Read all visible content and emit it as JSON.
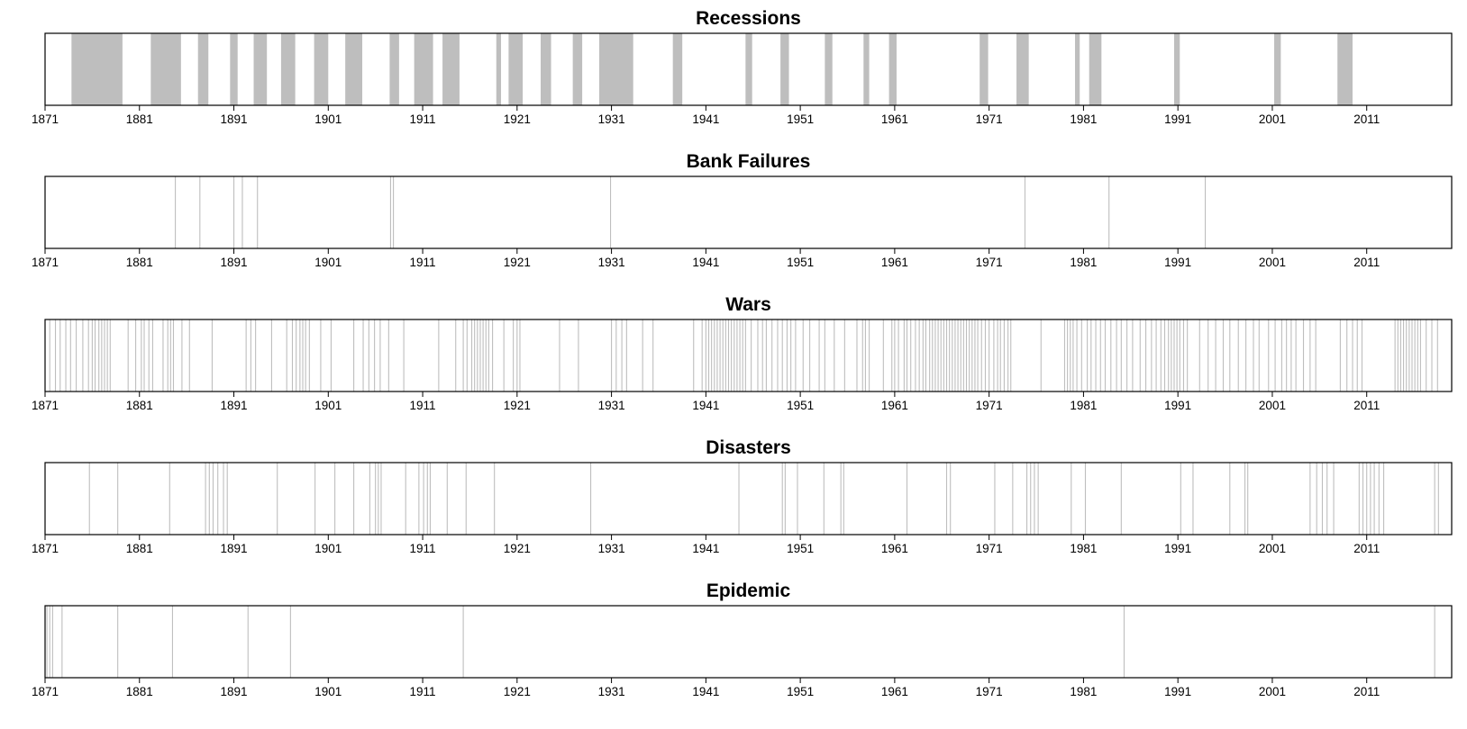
{
  "chart_data": [
    {
      "type": "timeline",
      "title": "Recessions",
      "xlim": [
        1871,
        2020
      ],
      "xticks": [
        "1871",
        "1881",
        "1891",
        "1901",
        "1911",
        "1921",
        "1931",
        "1941",
        "1951",
        "1961",
        "1971",
        "1981",
        "1991",
        "2001",
        "2011"
      ],
      "mark_color": "#bebebe",
      "periods": [
        [
          1873.8,
          1879.2
        ],
        [
          1882.2,
          1885.4
        ],
        [
          1887.2,
          1888.3
        ],
        [
          1890.6,
          1891.4
        ],
        [
          1893.1,
          1894.5
        ],
        [
          1896.0,
          1897.5
        ],
        [
          1899.5,
          1901.0
        ],
        [
          1902.8,
          1904.6
        ],
        [
          1907.5,
          1908.5
        ],
        [
          1910.1,
          1912.1
        ],
        [
          1913.1,
          1914.9
        ],
        [
          1918.8,
          1919.3
        ],
        [
          1920.1,
          1921.6
        ],
        [
          1923.5,
          1924.6
        ],
        [
          1926.9,
          1927.9
        ],
        [
          1929.7,
          1933.3
        ],
        [
          1937.5,
          1938.5
        ],
        [
          1945.2,
          1945.9
        ],
        [
          1948.9,
          1949.8
        ],
        [
          1953.6,
          1954.4
        ],
        [
          1957.7,
          1958.3
        ],
        [
          1960.4,
          1961.2
        ],
        [
          1970.0,
          1970.9
        ],
        [
          1973.9,
          1975.2
        ],
        [
          1980.1,
          1980.6
        ],
        [
          1981.6,
          1982.9
        ],
        [
          1990.6,
          1991.2
        ],
        [
          2001.2,
          2001.9
        ],
        [
          2007.9,
          2009.5
        ]
      ]
    },
    {
      "type": "timeline",
      "title": "Bank Failures",
      "xlim": [
        1871,
        2020
      ],
      "xticks": [
        "1871",
        "1881",
        "1891",
        "1901",
        "1911",
        "1921",
        "1931",
        "1941",
        "1951",
        "1961",
        "1971",
        "1981",
        "1991",
        "2001",
        "2011"
      ],
      "mark_color": "#bebebe",
      "events": [
        1884.8,
        1887.4,
        1891.0,
        1891.9,
        1893.5,
        1907.6,
        1907.9,
        1930.9,
        1974.8,
        1983.7,
        1993.9
      ]
    },
    {
      "type": "timeline",
      "title": "Wars",
      "xlim": [
        1871,
        2020
      ],
      "xticks": [
        "1871",
        "1881",
        "1891",
        "1901",
        "1911",
        "1921",
        "1931",
        "1941",
        "1951",
        "1961",
        "1971",
        "1981",
        "1991",
        "2001",
        "2011"
      ],
      "mark_color": "#bebebe",
      "events": [
        1871.5,
        1872.1,
        1872.6,
        1873.2,
        1873.7,
        1874.3,
        1875.0,
        1875.6,
        1876.0,
        1876.3,
        1876.7,
        1877.0,
        1877.3,
        1877.6,
        1877.9,
        1879.8,
        1880.6,
        1881.2,
        1881.5,
        1882.0,
        1882.4,
        1883.5,
        1884.0,
        1884.3,
        1884.6,
        1885.5,
        1886.3,
        1888.7,
        1892.3,
        1892.8,
        1893.3,
        1895.0,
        1896.6,
        1897.2,
        1897.6,
        1898.0,
        1898.3,
        1898.6,
        1899.0,
        1900.2,
        1901.3,
        1903.7,
        1904.7,
        1905.3,
        1905.9,
        1906.5,
        1907.4,
        1909.0,
        1912.7,
        1914.5,
        1915.3,
        1915.7,
        1916.2,
        1916.5,
        1916.8,
        1917.1,
        1917.4,
        1917.7,
        1918.0,
        1918.4,
        1919.6,
        1920.6,
        1921.0,
        1921.3,
        1925.5,
        1927.5,
        1931.0,
        1931.5,
        1932.1,
        1932.6,
        1934.3,
        1935.4,
        1939.7,
        1940.6,
        1941.0,
        1941.3,
        1941.6,
        1941.9,
        1942.2,
        1942.5,
        1942.8,
        1943.1,
        1943.4,
        1943.7,
        1944.0,
        1944.3,
        1944.6,
        1944.9,
        1945.2,
        1945.8,
        1946.5,
        1947.0,
        1947.4,
        1948.0,
        1948.6,
        1949.1,
        1949.6,
        1950.0,
        1950.5,
        1951.3,
        1952.0,
        1953.0,
        1953.6,
        1954.6,
        1955.7,
        1957.0,
        1957.6,
        1957.9,
        1958.3,
        1959.8,
        1960.7,
        1961.0,
        1961.4,
        1962.0,
        1962.3,
        1962.7,
        1963.2,
        1963.6,
        1964.0,
        1964.3,
        1964.7,
        1965.0,
        1965.3,
        1965.6,
        1965.9,
        1966.2,
        1966.5,
        1966.8,
        1967.1,
        1967.4,
        1967.7,
        1968.0,
        1968.3,
        1968.6,
        1968.9,
        1969.2,
        1969.5,
        1969.8,
        1970.2,
        1970.6,
        1971.0,
        1971.5,
        1971.9,
        1972.2,
        1972.6,
        1973.0,
        1973.3,
        1976.5,
        1979.0,
        1979.3,
        1979.6,
        1979.9,
        1980.3,
        1980.8,
        1981.4,
        1981.8,
        1982.3,
        1982.8,
        1983.3,
        1983.9,
        1984.5,
        1985.0,
        1985.6,
        1986.2,
        1987.0,
        1987.6,
        1988.2,
        1988.7,
        1989.2,
        1989.6,
        1990.0,
        1990.3,
        1990.6,
        1990.9,
        1991.2,
        1991.6,
        1992.0,
        1993.3,
        1994.2,
        1995.0,
        1995.8,
        1996.5,
        1997.4,
        1998.2,
        1999.0,
        1999.6,
        2000.6,
        2001.3,
        2002.0,
        2002.5,
        2003.0,
        2003.5,
        2004.3,
        2005.0,
        2005.6,
        2008.2,
        2008.9,
        2009.5,
        2010.0,
        2010.5,
        2014.0,
        2014.3,
        2014.6,
        2014.9,
        2015.2,
        2015.5,
        2015.8,
        2016.1,
        2016.4,
        2016.7,
        2017.3,
        2017.9,
        2018.5
      ]
    },
    {
      "type": "timeline",
      "title": "Disasters",
      "xlim": [
        1871,
        2020
      ],
      "xticks": [
        "1871",
        "1881",
        "1891",
        "1901",
        "1911",
        "1921",
        "1931",
        "1941",
        "1951",
        "1961",
        "1971",
        "1981",
        "1991",
        "2001",
        "2011"
      ],
      "mark_color": "#bebebe",
      "events": [
        1875.7,
        1878.7,
        1884.2,
        1888.0,
        1888.4,
        1888.8,
        1889.3,
        1889.9,
        1890.3,
        1895.6,
        1899.6,
        1901.7,
        1903.7,
        1905.4,
        1906.0,
        1906.3,
        1906.6,
        1909.2,
        1910.6,
        1911.1,
        1911.5,
        1911.8,
        1913.6,
        1915.6,
        1918.6,
        1928.8,
        1944.5,
        1949.1,
        1949.4,
        1950.7,
        1953.5,
        1955.3,
        1955.6,
        1962.3,
        1966.5,
        1966.9,
        1971.6,
        1973.5,
        1975.0,
        1975.4,
        1975.8,
        1976.2,
        1979.7,
        1981.2,
        1985.0,
        1991.3,
        1992.6,
        1996.5,
        1998.1,
        1998.4,
        2005.0,
        2005.7,
        2006.3,
        2006.8,
        2007.5,
        2010.2,
        2010.6,
        2011.0,
        2011.4,
        2011.8,
        2012.3,
        2012.8,
        2018.2,
        2018.6
      ]
    },
    {
      "type": "timeline",
      "title": "Epidemic",
      "xlim": [
        1871,
        2020
      ],
      "xticks": [
        "1871",
        "1881",
        "1891",
        "1901",
        "1911",
        "1921",
        "1931",
        "1941",
        "1951",
        "1961",
        "1971",
        "1981",
        "1991",
        "2001",
        "2011"
      ],
      "mark_color": "#bebebe",
      "events": [
        1871.2,
        1871.5,
        1871.8,
        1872.8,
        1878.7,
        1884.5,
        1892.5,
        1897.0,
        1915.3,
        1985.3,
        2018.2
      ]
    }
  ]
}
